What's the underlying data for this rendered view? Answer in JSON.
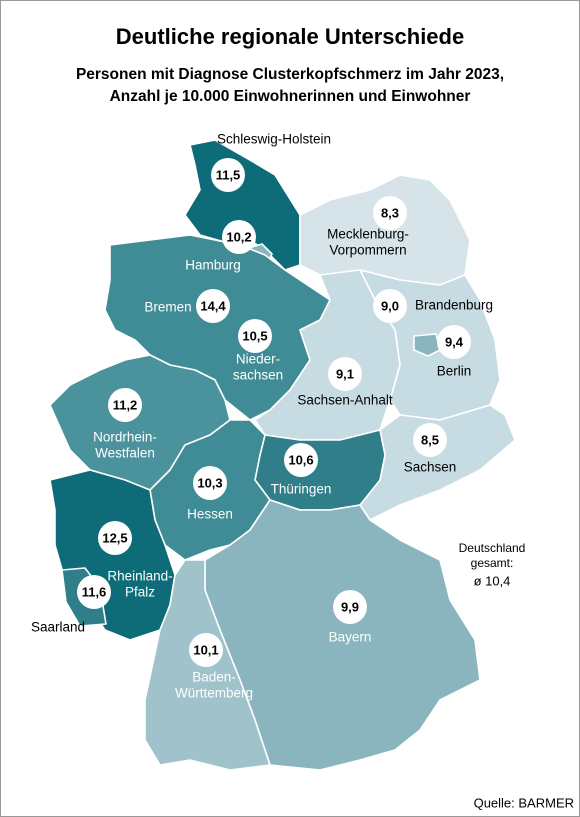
{
  "header": {
    "title": "Deutliche regionale Unterschiede",
    "subtitle": [
      "Personen mit Diagnose Clusterkopfschmerz im Jahr 2023,",
      "Anzahl je 10.000 Einwohnerinnen und Einwohner"
    ]
  },
  "regions": [
    {
      "name": [
        "Schleswig-Holstein"
      ],
      "value": "11,5"
    },
    {
      "name": [
        "Hamburg"
      ],
      "value": "10,2"
    },
    {
      "name": [
        "Mecklenburg-",
        "Vorpommern"
      ],
      "value": "8,3"
    },
    {
      "name": [
        "Bremen"
      ],
      "value": "14,4"
    },
    {
      "name": [
        "Nieder-",
        "sachsen"
      ],
      "value": "10,5"
    },
    {
      "name": [
        "Brandenburg"
      ],
      "value": "9,0"
    },
    {
      "name": [
        "Berlin"
      ],
      "value": "9,4"
    },
    {
      "name": [
        "Sachsen-Anhalt"
      ],
      "value": "9,1"
    },
    {
      "name": [
        "Nordrhein-",
        "Westfalen"
      ],
      "value": "11,2"
    },
    {
      "name": [
        "Sachsen"
      ],
      "value": "8,5"
    },
    {
      "name": [
        "Thüringen"
      ],
      "value": "10,6"
    },
    {
      "name": [
        "Hessen"
      ],
      "value": "10,3"
    },
    {
      "name": [
        "Rheinland-",
        "Pfalz"
      ],
      "value": "12,5"
    },
    {
      "name": [
        "Saarland"
      ],
      "value": "11,6"
    },
    {
      "name": [
        "Bayern"
      ],
      "value": "9,9"
    },
    {
      "name": [
        "Baden-",
        "Württemberg"
      ],
      "value": "10,1"
    }
  ],
  "total": {
    "label": [
      "Deutschland",
      "gesamt:"
    ],
    "value": "ø 10,4"
  },
  "source": "Quelle: BARMER"
}
